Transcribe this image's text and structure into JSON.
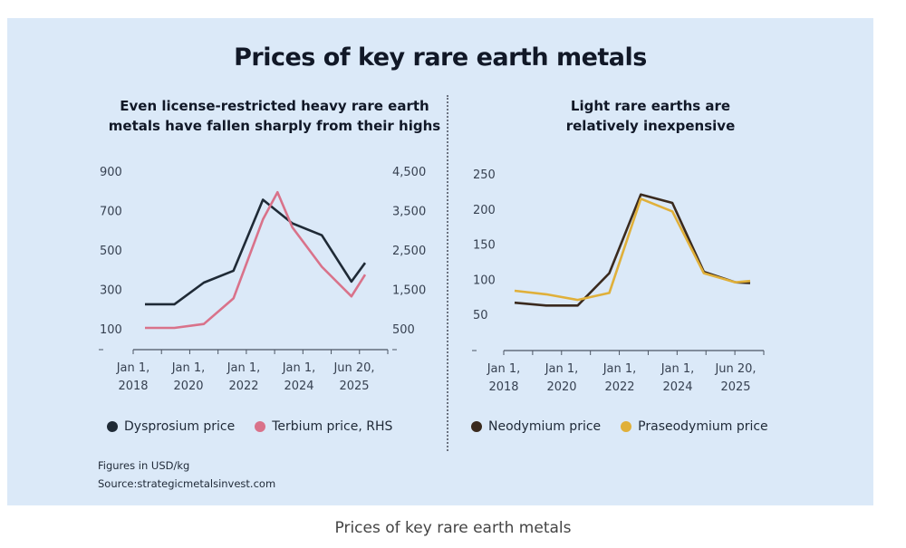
{
  "title": "Prices of key rare earth metals",
  "caption": "Prices of key rare earth metals",
  "note": {
    "units": "Figures in USD/kg",
    "source": "Source:strategicmetalsinvest.com"
  },
  "colors": {
    "background": "#dbe9f8",
    "dysprosium": "#1f2a36",
    "terbium": "#d9728a",
    "neodymium": "#3a2a1e",
    "praseodymium": "#e0b03a"
  },
  "chart_data": [
    {
      "type": "line",
      "subtitle_lines": [
        "Even license-restricted heavy rare earth",
        "metals have fallen sharply from their highs"
      ],
      "x_tick_labels": [
        [
          "Jan 1,",
          "2018"
        ],
        [
          "Jan 1,",
          "2020"
        ],
        [
          "Jan 1,",
          "2022"
        ],
        [
          "Jan 1,",
          "2024"
        ],
        [
          "Jun 20,",
          "2025"
        ]
      ],
      "x_tick_dates": [
        "2018-01-01",
        "2020-01-01",
        "2022-01-01",
        "2024-01-01",
        "2025-06-20"
      ],
      "x_points": [
        "2018-01-01",
        "2019-01-01",
        "2020-01-01",
        "2021-01-01",
        "2022-01-01",
        "2022-07-01",
        "2023-01-01",
        "2023-07-01",
        "2024-01-01",
        "2025-01-01",
        "2025-06-20"
      ],
      "y_left_ticks": [
        "900",
        "700",
        "500",
        "300",
        "100"
      ],
      "y_left_range": [
        0,
        900
      ],
      "y_right_ticks": [
        "4,500",
        "3,500",
        "2,500",
        "1,500",
        "500"
      ],
      "y_right_range": [
        0,
        4500
      ],
      "series": [
        {
          "name": "Dysprosium price",
          "axis": "left",
          "color": "#1f2a36",
          "points": [
            [
              "2018-01-01",
              230
            ],
            [
              "2019-01-01",
              230
            ],
            [
              "2020-01-01",
              340
            ],
            [
              "2021-01-01",
              400
            ],
            [
              "2022-01-01",
              760
            ],
            [
              "2023-01-01",
              640
            ],
            [
              "2024-01-01",
              580
            ],
            [
              "2025-01-01",
              345
            ],
            [
              "2025-06-20",
              440
            ]
          ]
        },
        {
          "name": "Terbium price, RHS",
          "axis": "right",
          "color": "#d9728a",
          "points": [
            [
              "2018-01-01",
              550
            ],
            [
              "2019-01-01",
              550
            ],
            [
              "2020-01-01",
              650
            ],
            [
              "2021-01-01",
              1300
            ],
            [
              "2022-01-01",
              3300
            ],
            [
              "2022-07-01",
              3990
            ],
            [
              "2023-01-01",
              3100
            ],
            [
              "2024-01-01",
              2100
            ],
            [
              "2025-01-01",
              1350
            ],
            [
              "2025-06-20",
              1900
            ]
          ]
        }
      ]
    },
    {
      "type": "line",
      "subtitle_lines": [
        "Light rare earths are",
        "relatively inexpensive"
      ],
      "x_tick_labels": [
        [
          "Jan 1,",
          "2018"
        ],
        [
          "Jan 1,",
          "2020"
        ],
        [
          "Jan 1,",
          "2022"
        ],
        [
          "Jan 1,",
          "2024"
        ],
        [
          "Jun 20,",
          "2025"
        ]
      ],
      "x_tick_dates": [
        "2018-01-01",
        "2020-01-01",
        "2022-01-01",
        "2024-01-01",
        "2025-06-20"
      ],
      "y_ticks": [
        "250",
        "200",
        "150",
        "100",
        "50"
      ],
      "y_range": [
        0,
        250
      ],
      "series": [
        {
          "name": "Neodymium price",
          "color": "#3a2a1e",
          "points": [
            [
              "2018-01-01",
              68
            ],
            [
              "2019-01-01",
              64
            ],
            [
              "2020-01-01",
              64
            ],
            [
              "2021-01-01",
              110
            ],
            [
              "2022-01-01",
              222
            ],
            [
              "2023-01-01",
              210
            ],
            [
              "2024-01-01",
              112
            ],
            [
              "2025-01-01",
              97
            ],
            [
              "2025-06-20",
              96
            ]
          ]
        },
        {
          "name": "Praseodymium price",
          "color": "#e0b03a",
          "points": [
            [
              "2018-01-01",
              85
            ],
            [
              "2019-01-01",
              80
            ],
            [
              "2020-01-01",
              72
            ],
            [
              "2021-01-01",
              82
            ],
            [
              "2022-01-01",
              216
            ],
            [
              "2023-01-01",
              198
            ],
            [
              "2024-01-01",
              110
            ],
            [
              "2025-01-01",
              97
            ],
            [
              "2025-06-20",
              99
            ]
          ]
        }
      ]
    }
  ]
}
